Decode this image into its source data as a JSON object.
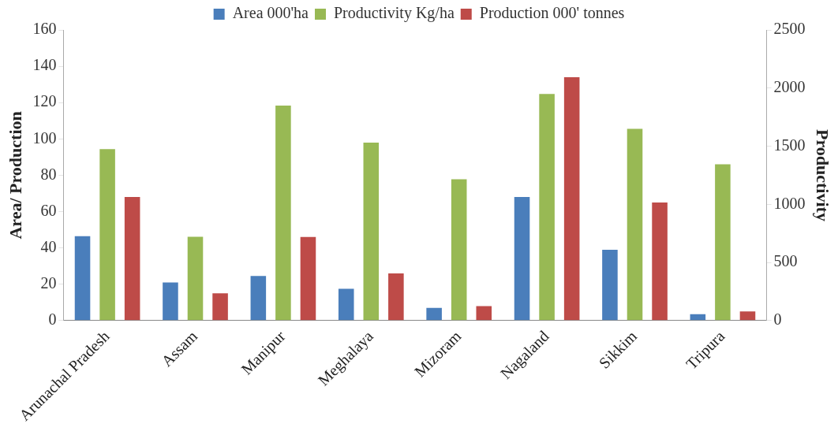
{
  "chart_data": {
    "type": "bar",
    "ylabel": "Area/ Production",
    "y2label": "Productivity",
    "categories": [
      "Arunachal Pradesh",
      "Assam",
      "Manipur",
      "Meghalaya",
      "Mizoram",
      "Nagaland",
      "Sikkim",
      "Tripura"
    ],
    "series": [
      {
        "name": "Area 000'ha",
        "color": "#4a7ebb",
        "values": [
          46.5,
          21,
          24.5,
          17.5,
          7,
          68,
          39,
          3.5
        ]
      },
      {
        "name": "Productivity Kg/ha",
        "color": "#98b954",
        "axis": "y2",
        "values": [
          1475,
          720,
          1850,
          1530,
          1215,
          1950,
          1650,
          1345
        ]
      },
      {
        "name": "Production 000' tonnes",
        "color": "#be4b48",
        "values": [
          68,
          15,
          46,
          26,
          8,
          134,
          65,
          5
        ]
      }
    ],
    "ylim": [
      0,
      160
    ],
    "yticks": [
      0,
      20,
      40,
      60,
      80,
      100,
      120,
      140,
      160
    ],
    "y2lim": [
      0,
      2500
    ],
    "y2ticks": [
      0,
      500,
      1000,
      1500,
      2000,
      2500
    ],
    "grid": false,
    "legend": "top"
  }
}
